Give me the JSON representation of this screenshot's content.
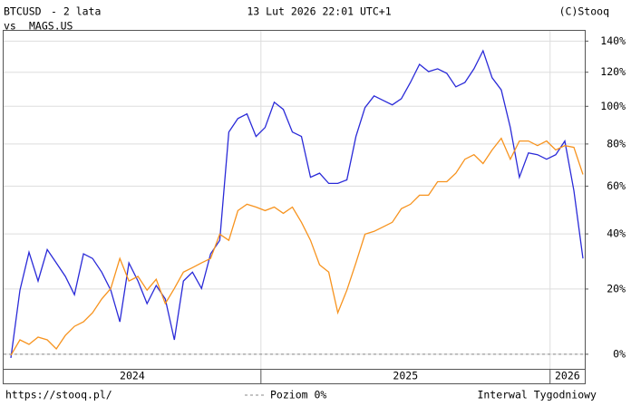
{
  "chart_data": {
    "type": "line",
    "subtitle": "- 2 lata",
    "vs_label": "vs",
    "date": "13 Lut 2026 22:01 UTC+1",
    "copyright": "(C)Stooq",
    "source": "https://stooq.pl/",
    "baseline_label": "Poziom 0%",
    "baseline": 0,
    "interval": "Interwal Tygodniowy",
    "log_scale": true,
    "grid": true,
    "xlim": [
      2024.11,
      2026.12
    ],
    "xticks": [
      2025,
      2026
    ],
    "x_labels": [
      "2024",
      "2025",
      "2026"
    ],
    "ylim": [
      -4,
      147
    ],
    "yticks": [
      {
        "value": 0,
        "label": "0%"
      },
      {
        "value": 20,
        "label": "20%"
      },
      {
        "value": 40,
        "label": "40%"
      },
      {
        "value": 60,
        "label": "60%"
      },
      {
        "value": 80,
        "label": "80%"
      },
      {
        "value": 100,
        "label": "100%"
      },
      {
        "value": 120,
        "label": "120%"
      },
      {
        "value": 140,
        "label": "140%"
      }
    ],
    "series": [
      {
        "name": "BTCUSD",
        "color": "#2a2ad8",
        "values": [
          -1.0,
          19.6,
          33.0,
          22.7,
          34.0,
          29.1,
          24.3,
          18.1,
          32.4,
          30.7,
          25.8,
          19.6,
          9.5,
          29.1,
          22.7,
          15.2,
          21.2,
          16.7,
          4.1,
          22.7,
          25.8,
          20.2,
          32.4,
          37.5,
          86.1,
          93.3,
          95.8,
          83.8,
          88.5,
          102.3,
          98.3,
          86.1,
          83.8,
          64.0,
          65.9,
          61.2,
          61.2,
          62.8,
          83.8,
          99.3,
          105.9,
          103.3,
          100.8,
          104.3,
          113.8,
          124.9,
          120.4,
          122.1,
          119.3,
          111.2,
          113.8,
          122.1,
          133.6,
          116.6,
          109.4,
          88.5,
          64.0,
          75.6,
          74.7,
          72.5,
          74.7,
          81.5,
          58.0,
          30.7
        ]
      },
      {
        "name": "MAGS.US",
        "color": "#f7931e",
        "values": [
          -0.3,
          4.1,
          2.8,
          4.9,
          4.1,
          1.5,
          5.4,
          8.1,
          9.5,
          12.3,
          16.7,
          20.2,
          30.7,
          22.7,
          24.3,
          19.6,
          23.3,
          15.2,
          20.2,
          25.8,
          27.4,
          29.1,
          30.7,
          39.9,
          37.5,
          49.4,
          52.1,
          50.9,
          49.4,
          50.9,
          48.3,
          50.9,
          44.6,
          37.5,
          28.4,
          25.8,
          12.3,
          19.6,
          29.1,
          39.9,
          41.0,
          42.8,
          44.6,
          50.2,
          52.1,
          56.0,
          56.0,
          62.0,
          62.0,
          65.9,
          72.5,
          74.7,
          70.4,
          77.0,
          82.9,
          72.5,
          81.5,
          81.5,
          79.2,
          81.5,
          77.0,
          79.2,
          78.3,
          65.3
        ]
      }
    ]
  }
}
